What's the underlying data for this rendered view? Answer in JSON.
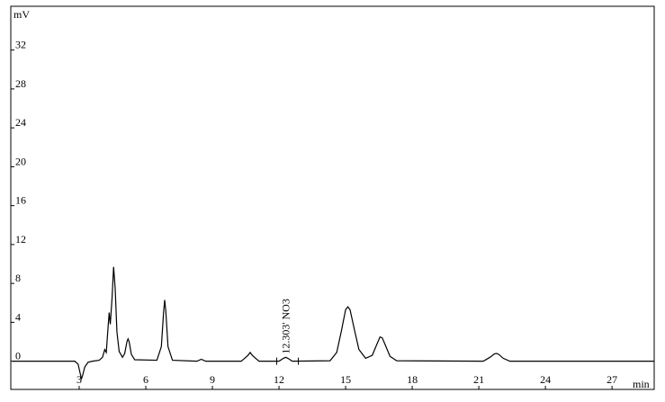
{
  "chart_data": {
    "type": "line",
    "y_label": "mV",
    "x_label": "min",
    "xlim": [
      0,
      28.9
    ],
    "ylim": [
      -2.9,
      36.5
    ],
    "xticks": [
      3,
      6,
      9,
      12,
      15,
      18,
      21,
      24,
      27
    ],
    "yticks": [
      0,
      4,
      8,
      12,
      16,
      20,
      24,
      28,
      32
    ],
    "annotations": [
      {
        "text": "12.303' NO3",
        "x": 12.303
      }
    ],
    "series": [
      {
        "color": "#000000",
        "x": [
          0,
          2.8,
          2.95,
          3.05,
          3.1,
          3.15,
          3.25,
          3.4,
          3.6,
          3.9,
          4.05,
          4.15,
          4.22,
          4.3,
          4.35,
          4.4,
          4.48,
          4.55,
          4.62,
          4.7,
          4.8,
          4.95,
          5.05,
          5.15,
          5.2,
          5.25,
          5.35,
          5.5,
          6.5,
          6.7,
          6.8,
          6.85,
          6.9,
          7.0,
          7.2,
          8.3,
          8.5,
          8.7,
          10.3,
          10.6,
          10.7,
          10.8,
          11.1,
          12.0,
          12.2,
          12.3,
          12.4,
          12.6,
          14.3,
          14.6,
          14.8,
          15.0,
          15.1,
          15.2,
          15.4,
          15.6,
          15.9,
          16.2,
          16.4,
          16.55,
          16.65,
          16.8,
          17.0,
          17.3,
          21.2,
          21.5,
          21.7,
          21.8,
          21.9,
          22.1,
          22.4,
          28.9
        ],
        "values": [
          0,
          0,
          -0.3,
          -1.3,
          -1.8,
          -1.5,
          -0.6,
          -0.1,
          0,
          0.1,
          0.4,
          1.2,
          0.9,
          3.5,
          5.0,
          3.8,
          6.5,
          9.7,
          7.5,
          3.0,
          1.0,
          0.4,
          0.8,
          2.0,
          2.3,
          2.0,
          0.7,
          0.15,
          0.1,
          1.5,
          5.0,
          6.3,
          5.2,
          1.5,
          0.1,
          0,
          0.2,
          0,
          0,
          0.6,
          0.9,
          0.6,
          0,
          0,
          0.3,
          0.4,
          0.3,
          0,
          0.05,
          0.9,
          3.0,
          5.3,
          5.6,
          5.3,
          3.2,
          1.2,
          0.3,
          0.6,
          1.7,
          2.5,
          2.4,
          1.6,
          0.5,
          0.05,
          0,
          0.4,
          0.75,
          0.8,
          0.7,
          0.3,
          0,
          0
        ]
      }
    ]
  }
}
